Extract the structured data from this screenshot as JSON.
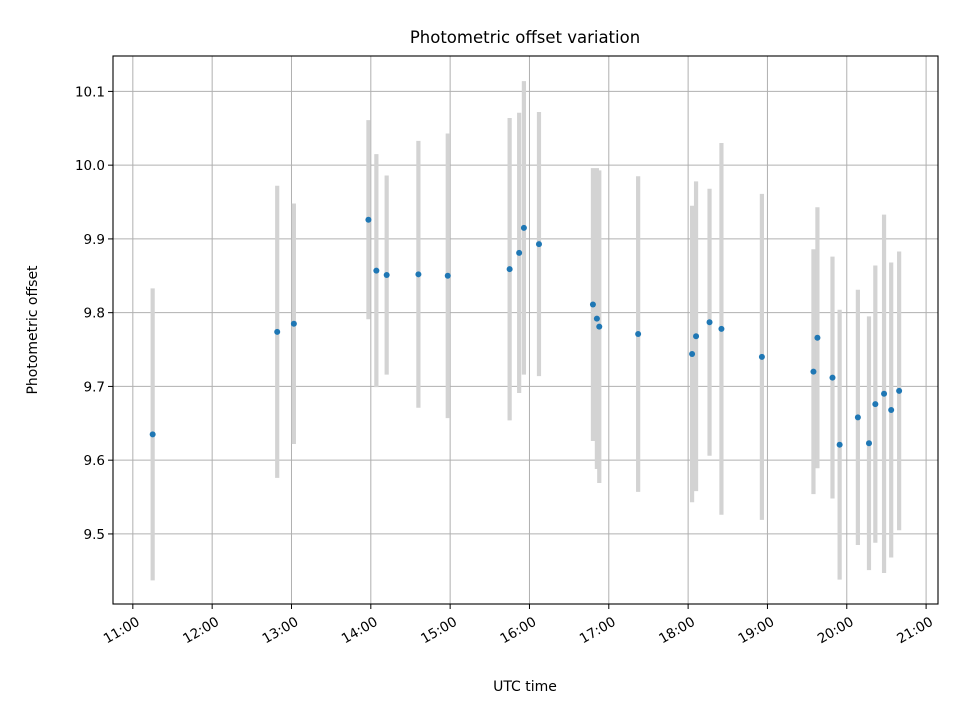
{
  "chart_data": {
    "type": "scatter",
    "title": "Photometric offset variation",
    "xlabel": "UTC time",
    "ylabel": "Photometric offset",
    "xlim": [
      10.75,
      21.15
    ],
    "ylim": [
      9.405,
      10.148
    ],
    "grid": true,
    "x_unit": "hours UTC",
    "x_ticks": [
      {
        "value": 11,
        "label": "11:00"
      },
      {
        "value": 12,
        "label": "12:00"
      },
      {
        "value": 13,
        "label": "13:00"
      },
      {
        "value": 14,
        "label": "14:00"
      },
      {
        "value": 15,
        "label": "15:00"
      },
      {
        "value": 16,
        "label": "16:00"
      },
      {
        "value": 17,
        "label": "17:00"
      },
      {
        "value": 18,
        "label": "18:00"
      },
      {
        "value": 19,
        "label": "19:00"
      },
      {
        "value": 20,
        "label": "20:00"
      },
      {
        "value": 21,
        "label": "21:00"
      }
    ],
    "y_ticks": [
      {
        "value": 9.5,
        "label": "9.5"
      },
      {
        "value": 9.6,
        "label": "9.6"
      },
      {
        "value": 9.7,
        "label": "9.7"
      },
      {
        "value": 9.8,
        "label": "9.8"
      },
      {
        "value": 9.9,
        "label": "9.9"
      },
      {
        "value": 10.0,
        "label": "10.0"
      },
      {
        "value": 10.1,
        "label": "10.1"
      }
    ],
    "series": [
      {
        "name": "Photometric offset",
        "marker_color": "#1f77b4",
        "errorbar_color": "#d3d3d3",
        "points": [
          {
            "x": 11.25,
            "y": 9.635,
            "err": 0.198
          },
          {
            "x": 12.82,
            "y": 9.774,
            "err": 0.198
          },
          {
            "x": 13.03,
            "y": 9.785,
            "err": 0.163
          },
          {
            "x": 13.97,
            "y": 9.926,
            "err": 0.135
          },
          {
            "x": 14.07,
            "y": 9.857,
            "err": 0.158
          },
          {
            "x": 14.2,
            "y": 9.851,
            "err": 0.135
          },
          {
            "x": 14.6,
            "y": 9.852,
            "err": 0.181
          },
          {
            "x": 14.97,
            "y": 9.85,
            "err": 0.193
          },
          {
            "x": 15.75,
            "y": 9.859,
            "err": 0.205
          },
          {
            "x": 15.87,
            "y": 9.881,
            "err": 0.19
          },
          {
            "x": 15.93,
            "y": 9.915,
            "err": 0.199
          },
          {
            "x": 16.12,
            "y": 9.893,
            "err": 0.179
          },
          {
            "x": 16.8,
            "y": 9.811,
            "err": 0.185
          },
          {
            "x": 16.85,
            "y": 9.792,
            "err": 0.204
          },
          {
            "x": 16.88,
            "y": 9.781,
            "err": 0.212
          },
          {
            "x": 17.37,
            "y": 9.771,
            "err": 0.214
          },
          {
            "x": 18.05,
            "y": 9.744,
            "err": 0.201
          },
          {
            "x": 18.1,
            "y": 9.768,
            "err": 0.21
          },
          {
            "x": 18.27,
            "y": 9.787,
            "err": 0.181
          },
          {
            "x": 18.42,
            "y": 9.778,
            "err": 0.252
          },
          {
            "x": 18.93,
            "y": 9.74,
            "err": 0.221
          },
          {
            "x": 19.58,
            "y": 9.72,
            "err": 0.166
          },
          {
            "x": 19.63,
            "y": 9.766,
            "err": 0.177
          },
          {
            "x": 19.82,
            "y": 9.712,
            "err": 0.164
          },
          {
            "x": 19.91,
            "y": 9.621,
            "err": 0.183
          },
          {
            "x": 20.14,
            "y": 9.658,
            "err": 0.173
          },
          {
            "x": 20.28,
            "y": 9.623,
            "err": 0.172
          },
          {
            "x": 20.36,
            "y": 9.676,
            "err": 0.188
          },
          {
            "x": 20.47,
            "y": 9.69,
            "err": 0.243
          },
          {
            "x": 20.56,
            "y": 9.668,
            "err": 0.2
          },
          {
            "x": 20.66,
            "y": 9.694,
            "err": 0.189
          }
        ]
      }
    ]
  }
}
